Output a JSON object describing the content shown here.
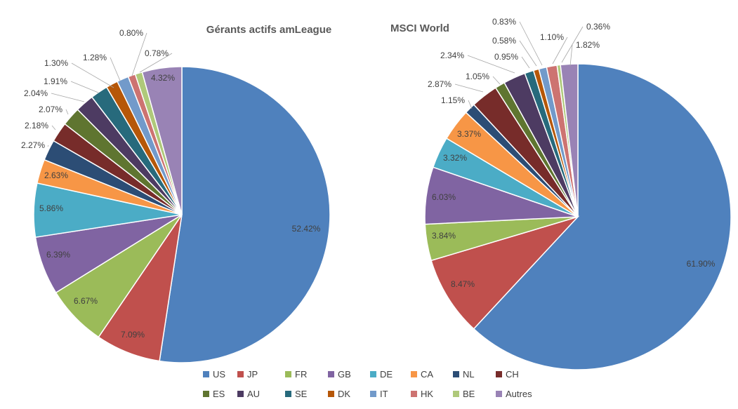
{
  "chart_data": {
    "type": "pie",
    "categories": [
      "US",
      "JP",
      "FR",
      "GB",
      "DE",
      "CA",
      "NL",
      "CH",
      "ES",
      "AU",
      "SE",
      "DK",
      "IT",
      "HK",
      "BE",
      "Autres"
    ],
    "colors": [
      "#4f81bd",
      "#c0504d",
      "#9bbb59",
      "#8064a2",
      "#4bacc6",
      "#f79646",
      "#2c4d75",
      "#772c2a",
      "#5f7530",
      "#4d3b62",
      "#276a7c",
      "#b65708",
      "#729aca",
      "#cd7371",
      "#afc97a",
      "#9983b5"
    ],
    "series": [
      {
        "name": "Gérants actifs amLeague",
        "values": [
          52.42,
          7.09,
          6.67,
          6.39,
          5.86,
          2.63,
          2.27,
          2.18,
          2.07,
          2.04,
          1.91,
          1.3,
          1.28,
          0.8,
          0.78,
          4.32
        ],
        "labels": [
          "52.42%",
          "7.09%",
          "6.67%",
          "6.39%",
          "5.86%",
          "2.63%",
          "2.27%",
          "2.18%",
          "2.07%",
          "2.04%",
          "1.91%",
          "1.30%",
          "1.28%",
          "0.80%",
          "0.78%",
          "4.32%"
        ]
      },
      {
        "name": "MSCI World",
        "values": [
          61.9,
          8.47,
          3.84,
          6.03,
          3.32,
          3.37,
          1.15,
          2.87,
          1.05,
          2.34,
          0.95,
          0.58,
          0.83,
          1.1,
          0.36,
          1.82
        ],
        "labels": [
          "61.90%",
          "8.47%",
          "3.84%",
          "6.03%",
          "3.32%",
          "3.37%",
          "1.15%",
          "2.87%",
          "1.05%",
          "2.34%",
          "0.95%",
          "0.58%",
          "0.83%",
          "1.10%",
          "0.36%",
          "1.82%"
        ]
      }
    ],
    "legend_position": "bottom"
  }
}
